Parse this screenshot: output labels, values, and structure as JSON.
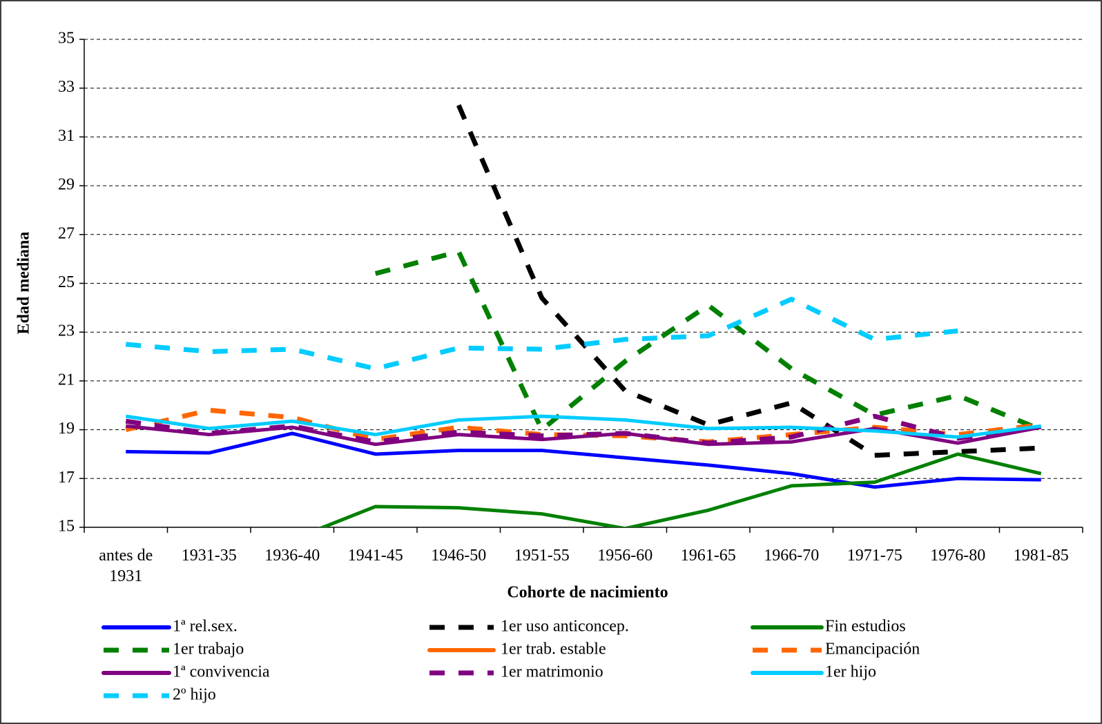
{
  "chart_data": {
    "type": "line",
    "x_label": "Cohorte de nacimiento",
    "y_label": "Edad mediana",
    "categories": [
      "antes de 1931",
      "1931-35",
      "1936-40",
      "1941-45",
      "1946-50",
      "1951-55",
      "1956-60",
      "1961-65",
      "1966-70",
      "1971-75",
      "1976-80",
      "1981-85"
    ],
    "ylim": [
      15,
      35
    ],
    "yticks": [
      15,
      17,
      19,
      21,
      23,
      25,
      27,
      29,
      31,
      33,
      35
    ],
    "grid": true,
    "series": [
      {
        "name": "1ª rel.sex.",
        "color": "#0000ff",
        "dashed": false,
        "values": [
          18.1,
          18.05,
          18.85,
          18.0,
          18.15,
          18.15,
          17.85,
          17.55,
          17.2,
          16.65,
          17.0,
          16.95
        ]
      },
      {
        "name": "1er uso anticoncep.",
        "color": "#000000",
        "dashed": true,
        "values": [
          null,
          null,
          null,
          null,
          32.3,
          24.4,
          20.6,
          19.2,
          20.1,
          17.95,
          18.1,
          18.25
        ]
      },
      {
        "name": "Fin estudios",
        "color": "#008000",
        "dashed": false,
        "values": [
          null,
          null,
          14.5,
          15.85,
          15.8,
          15.55,
          14.95,
          15.7,
          16.7,
          16.85,
          18.0,
          17.2
        ]
      },
      {
        "name": "1er trabajo",
        "color": "#008000",
        "dashed": true,
        "values": [
          null,
          null,
          null,
          25.4,
          26.3,
          19.0,
          21.8,
          24.1,
          21.5,
          19.6,
          20.4,
          19.0
        ]
      },
      {
        "name": "1er trab. estable",
        "color": "#ff6600",
        "dashed": false,
        "values": [
          null,
          null,
          null,
          null,
          null,
          null,
          null,
          null,
          null,
          null,
          null,
          null
        ]
      },
      {
        "name": "Emancipación",
        "color": "#ff6600",
        "dashed": true,
        "values": [
          19.0,
          19.8,
          19.5,
          18.6,
          19.1,
          18.8,
          18.75,
          18.5,
          18.8,
          19.1,
          18.8,
          19.2
        ]
      },
      {
        "name": "1ª convivencia",
        "color": "#800080",
        "dashed": false,
        "values": [
          19.15,
          18.8,
          19.1,
          18.4,
          18.8,
          18.6,
          18.85,
          18.4,
          18.5,
          19.05,
          18.45,
          19.1
        ]
      },
      {
        "name": "1er matrimonio",
        "color": "#800080",
        "dashed": true,
        "values": [
          19.35,
          18.85,
          19.15,
          18.5,
          18.9,
          18.75,
          18.85,
          18.45,
          18.7,
          19.55,
          18.65,
          19.1
        ]
      },
      {
        "name": "1er hijo",
        "color": "#00ccff",
        "dashed": false,
        "values": [
          19.55,
          19.05,
          19.35,
          18.8,
          19.4,
          19.55,
          19.4,
          19.05,
          19.1,
          18.95,
          18.7,
          19.15
        ]
      },
      {
        "name": "2º hijo",
        "color": "#00ccff",
        "dashed": true,
        "values": [
          22.5,
          22.2,
          22.3,
          21.5,
          22.35,
          22.3,
          22.7,
          22.85,
          24.35,
          22.7,
          23.05,
          null
        ]
      }
    ]
  }
}
